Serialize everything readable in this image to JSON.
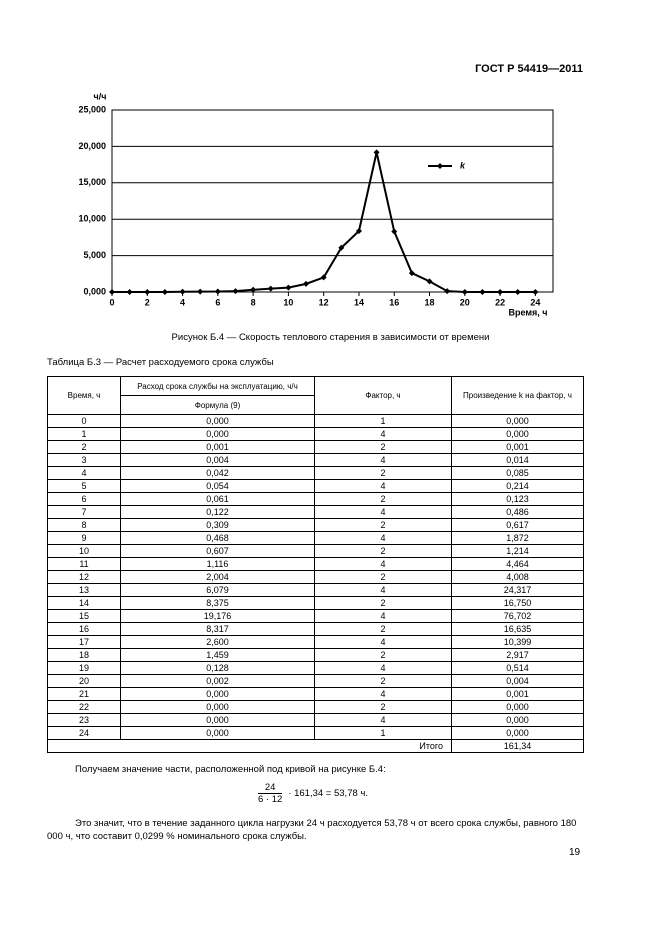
{
  "header": "ГОСТ Р 54419—2011",
  "chart_data": {
    "type": "line",
    "y_label": "ч/ч",
    "x_label": "Время, ч",
    "x": [
      0,
      1,
      2,
      3,
      4,
      5,
      6,
      7,
      8,
      9,
      10,
      11,
      12,
      13,
      14,
      15,
      16,
      17,
      18,
      19,
      20,
      21,
      22,
      23,
      24
    ],
    "series": [
      {
        "name": "k",
        "color": "#000000",
        "values": [
          0,
          0,
          0.001,
          0.004,
          0.042,
          0.054,
          0.061,
          0.122,
          0.309,
          0.468,
          0.607,
          1.116,
          2.004,
          6.079,
          8.375,
          19.176,
          8.317,
          2.6,
          1.459,
          0.128,
          0.002,
          0,
          0,
          0,
          0
        ]
      }
    ],
    "xlim": [
      0,
      25
    ],
    "xticks": [
      0,
      2,
      4,
      6,
      8,
      10,
      12,
      14,
      16,
      18,
      20,
      22,
      24
    ],
    "ylim": [
      0,
      25
    ],
    "yticks": [
      {
        "value": 0,
        "label": "0,000"
      },
      {
        "value": 5,
        "label": "5,000"
      },
      {
        "value": 10,
        "label": "10,000"
      },
      {
        "value": 15,
        "label": "15,000"
      },
      {
        "value": 20,
        "label": "20,000"
      },
      {
        "value": 25,
        "label": "25,000"
      }
    ],
    "grid": true,
    "legend": "upper right"
  },
  "figure_caption": "Рисунок Б.4 — Скорость теплового старения в зависимости от времени",
  "table": {
    "title": "Таблица Б.3 — Расчет расходуемого срока службы",
    "headers": [
      "Время, ч",
      "Расход срока службы на эксплуатацию, ч/ч",
      "Формула (9)",
      "Фактор, ч",
      "Произведение k на фактор, ч"
    ],
    "rows": [
      [
        "0",
        "0,000",
        "1",
        "0,000"
      ],
      [
        "1",
        "0,000",
        "4",
        "0,000"
      ],
      [
        "2",
        "0,001",
        "2",
        "0,001"
      ],
      [
        "3",
        "0,004",
        "4",
        "0,014"
      ],
      [
        "4",
        "0,042",
        "2",
        "0,085"
      ],
      [
        "5",
        "0,054",
        "4",
        "0,214"
      ],
      [
        "6",
        "0,061",
        "2",
        "0,123"
      ],
      [
        "7",
        "0,122",
        "4",
        "0,486"
      ],
      [
        "8",
        "0,309",
        "2",
        "0,617"
      ],
      [
        "9",
        "0,468",
        "4",
        "1,872"
      ],
      [
        "10",
        "0,607",
        "2",
        "1,214"
      ],
      [
        "11",
        "1,116",
        "4",
        "4,464"
      ],
      [
        "12",
        "2,004",
        "2",
        "4,008"
      ],
      [
        "13",
        "6,079",
        "4",
        "24,317"
      ],
      [
        "14",
        "8,375",
        "2",
        "16,750"
      ],
      [
        "15",
        "19,176",
        "4",
        "76,702"
      ],
      [
        "16",
        "8,317",
        "2",
        "16,635"
      ],
      [
        "17",
        "2,600",
        "4",
        "10,399"
      ],
      [
        "18",
        "1,459",
        "2",
        "2,917"
      ],
      [
        "19",
        "0,128",
        "4",
        "0,514"
      ],
      [
        "20",
        "0,002",
        "2",
        "0,004"
      ],
      [
        "21",
        "0,000",
        "4",
        "0,001"
      ],
      [
        "22",
        "0,000",
        "2",
        "0,000"
      ],
      [
        "23",
        "0,000",
        "4",
        "0,000"
      ],
      [
        "24",
        "0,000",
        "1",
        "0,000"
      ]
    ],
    "total": [
      "Итого",
      "161,34"
    ]
  },
  "text": {
    "intro": "Получаем значение части, расположенной под кривой на рисунке Б.4:",
    "formula": {
      "numerator": "24",
      "denominator": "6 · 12",
      "rest": "· 161,34 = 53,78 ч."
    },
    "conclusion": "Это значит, что в течение заданного цикла нагрузки 24 ч расходуется 53,78 ч от всего срока службы, равного 180 000 ч, что составит 0,0299 % номинального срока службы."
  },
  "page_number": "19"
}
